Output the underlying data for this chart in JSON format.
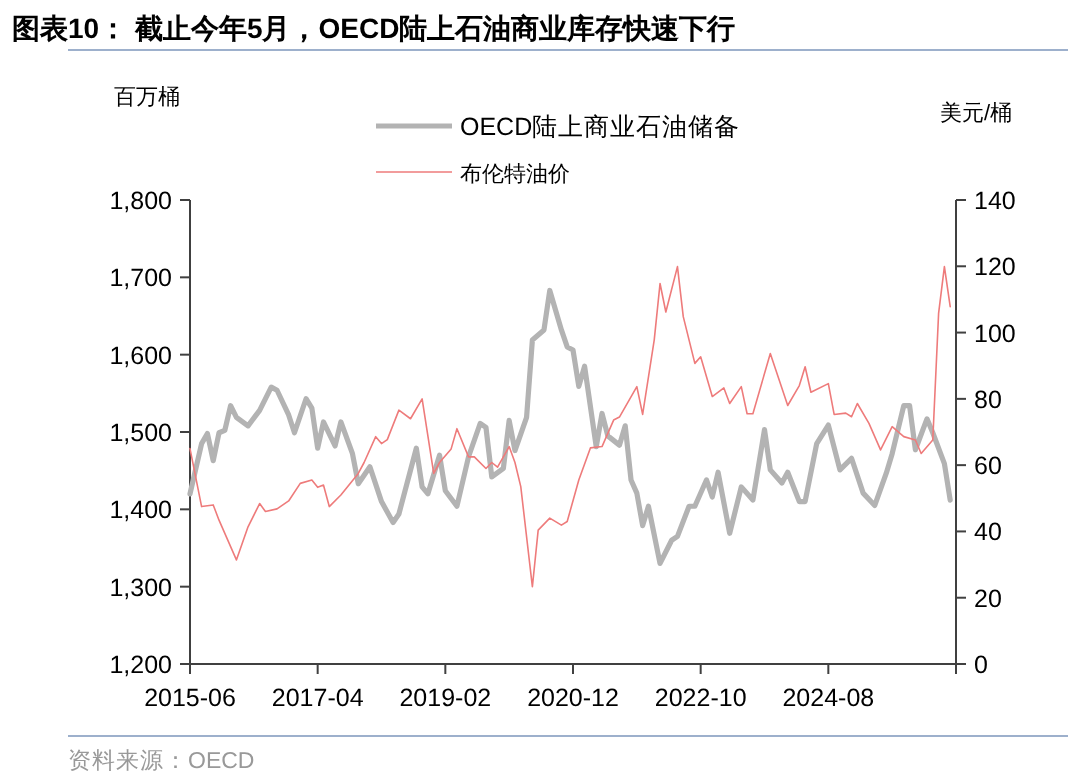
{
  "chart_data": {
    "type": "line",
    "title": "图表10：  截止今年5月，OECD陆上石油商业库存快速下行",
    "ylabel": "百万桶",
    "y2label": "美元/桶",
    "legend": "top",
    "grid": false,
    "xlim": [
      "2015-06",
      "2026-06"
    ],
    "xticks": [
      "2015-06",
      "2017-04",
      "2019-02",
      "2020-12",
      "2022-10",
      "2024-08",
      {
        "value": "2026-06",
        "label": null
      }
    ],
    "ylim": [
      1200,
      1800
    ],
    "yticks": [
      {
        "value": 1200,
        "label": "1,200"
      },
      {
        "value": 1300,
        "label": "1,300"
      },
      {
        "value": 1400,
        "label": "1,400"
      },
      {
        "value": 1500,
        "label": "1,500"
      },
      {
        "value": 1600,
        "label": "1,600"
      },
      {
        "value": 1700,
        "label": "1,700"
      },
      {
        "value": 1800,
        "label": "1,800"
      }
    ],
    "y2lim": [
      0,
      140
    ],
    "y2ticks": [
      0,
      20,
      40,
      60,
      80,
      100,
      120,
      140
    ],
    "annotations": [
      "资料来源：OECD"
    ],
    "series": [
      {
        "name": "OECD陆上商业石油储备",
        "color": "#b3b3b3",
        "x": [
          "2015-06",
          "2015-08",
          "2015-09",
          "2015-10",
          "2015-11",
          "2015-12",
          "2016-01",
          "2016-02",
          "2016-04",
          "2016-06",
          "2016-08",
          "2016-09",
          "2016-11",
          "2016-12",
          "2017-02",
          "2017-03",
          "2017-04",
          "2017-05",
          "2017-07",
          "2017-08",
          "2017-10",
          "2017-11",
          "2018-01",
          "2018-03",
          "2018-05",
          "2018-06",
          "2018-09",
          "2018-10",
          "2018-11",
          "2019-01",
          "2019-02",
          "2019-04",
          "2019-06",
          "2019-08",
          "2019-09",
          "2019-10",
          "2019-12",
          "2020-01",
          "2020-02",
          "2020-04",
          "2020-05",
          "2020-07",
          "2020-08",
          "2020-10",
          "2020-11",
          "2020-12",
          "2021-01",
          "2021-02",
          "2021-04",
          "2021-05",
          "2021-06",
          "2021-08",
          "2021-09",
          "2021-10",
          "2021-11",
          "2021-12",
          "2022-01",
          "2022-03",
          "2022-05",
          "2022-06",
          "2022-08",
          "2022-09",
          "2022-11",
          "2022-12",
          "2023-01",
          "2023-03",
          "2023-05",
          "2023-07",
          "2023-09",
          "2023-10",
          "2023-12",
          "2024-01",
          "2024-03",
          "2024-04",
          "2024-06",
          "2024-08",
          "2024-10",
          "2024-12",
          "2025-02",
          "2025-04",
          "2025-06",
          "2025-07",
          "2025-09",
          "2025-10",
          "2025-11",
          "2026-01",
          "2026-02",
          "2026-04",
          "2026-05"
        ],
        "values": [
          1420,
          1485,
          1498,
          1463,
          1499,
          1502,
          1534,
          1519,
          1508,
          1528,
          1558,
          1554,
          1522,
          1499,
          1543,
          1531,
          1479,
          1513,
          1482,
          1513,
          1472,
          1433,
          1455,
          1410,
          1383,
          1394,
          1479,
          1429,
          1420,
          1470,
          1424,
          1404,
          1468,
          1511,
          1506,
          1442,
          1453,
          1515,
          1476,
          1519,
          1619,
          1632,
          1683,
          1632,
          1610,
          1606,
          1559,
          1585,
          1481,
          1524,
          1495,
          1483,
          1508,
          1438,
          1421,
          1379,
          1404,
          1330,
          1360,
          1365,
          1404,
          1404,
          1438,
          1416,
          1448,
          1369,
          1429,
          1412,
          1503,
          1451,
          1434,
          1448,
          1410,
          1410,
          1485,
          1509,
          1451,
          1466,
          1421,
          1405,
          1447,
          1472,
          1534,
          1534,
          1477,
          1517,
          1499,
          1459,
          1412
        ]
      },
      {
        "name": "布伦特油价",
        "color": "#ee7b7b",
        "axis": "y2",
        "x": [
          "2015-06",
          "2015-08",
          "2015-10",
          "2015-11",
          "2016-02",
          "2016-04",
          "2016-06",
          "2016-07",
          "2016-09",
          "2016-11",
          "2017-01",
          "2017-03",
          "2017-04",
          "2017-05",
          "2017-06",
          "2017-08",
          "2017-11",
          "2017-12",
          "2018-02",
          "2018-03",
          "2018-04",
          "2018-06",
          "2018-08",
          "2018-10",
          "2018-12",
          "2019-01",
          "2019-03",
          "2019-04",
          "2019-06",
          "2019-07",
          "2019-09",
          "2019-10",
          "2019-11",
          "2020-01",
          "2020-02",
          "2020-03",
          "2020-05",
          "2020-06",
          "2020-08",
          "2020-10",
          "2020-11",
          "2021-01",
          "2021-03",
          "2021-05",
          "2021-07",
          "2021-08",
          "2021-11",
          "2021-12",
          "2022-02",
          "2022-03",
          "2022-04",
          "2022-06",
          "2022-07",
          "2022-09",
          "2022-10",
          "2022-12",
          "2023-02",
          "2023-03",
          "2023-05",
          "2023-06",
          "2023-07",
          "2023-10",
          "2024-01",
          "2024-03",
          "2024-04",
          "2024-05",
          "2024-08",
          "2024-09",
          "2024-11",
          "2024-12",
          "2025-01",
          "2025-03",
          "2025-05",
          "2025-07",
          "2025-09",
          "2025-11",
          "2025-12",
          "2026-02",
          "2026-03",
          "2026-04",
          "2026-05"
        ],
        "values": [
          65,
          47.5,
          48,
          43.4,
          31.4,
          41.4,
          48.4,
          46,
          46.8,
          49.2,
          54.5,
          55.5,
          53.3,
          54,
          47.5,
          51,
          57.5,
          60.8,
          68.6,
          66.5,
          67.7,
          76.6,
          74,
          80,
          57.5,
          60.8,
          64.9,
          71,
          62.5,
          62.5,
          59,
          60.8,
          59.4,
          65.6,
          60.8,
          53.5,
          23.3,
          40.4,
          44,
          41.9,
          43,
          55.5,
          65.2,
          65.6,
          73.6,
          74.5,
          83.7,
          75.3,
          97.8,
          114.8,
          106.2,
          119.9,
          104.8,
          90.7,
          92.7,
          80.7,
          83.3,
          78.6,
          83.7,
          75.5,
          75.5,
          93.7,
          78,
          84,
          89.7,
          82,
          84.6,
          75.3,
          75.7,
          74.6,
          78.6,
          72.6,
          64.6,
          71.6,
          68.6,
          67.6,
          63.5,
          67.6,
          105.8,
          119.9,
          107.8
        ]
      }
    ]
  }
}
